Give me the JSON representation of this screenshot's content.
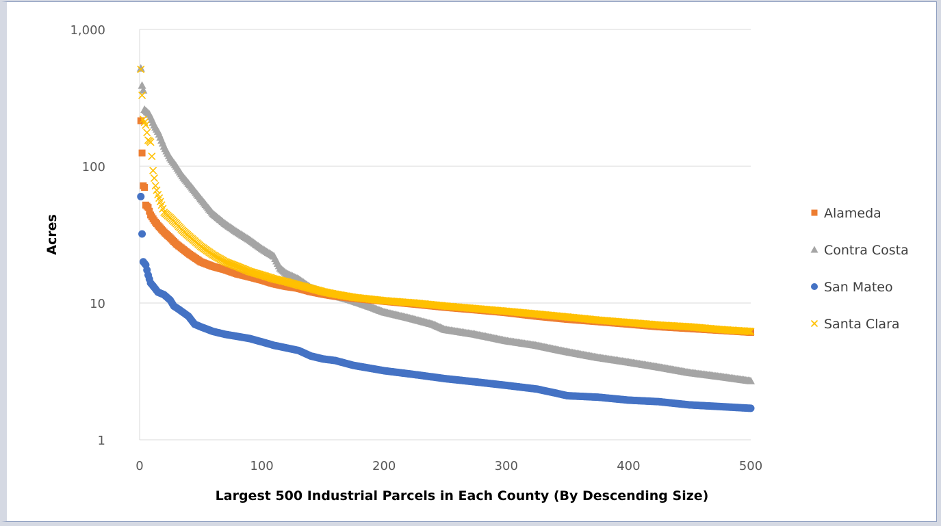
{
  "colors": {
    "alameda": "#ed7d31",
    "contra_costa": "#a5a5a5",
    "san_mateo": "#4472c4",
    "santa_clara": "#ffc000",
    "gridline": "#d9d9d9",
    "axis_text": "#595959"
  },
  "chart_data": {
    "type": "scatter",
    "title": "",
    "xlabel": "Largest 500 Industrial Parcels in Each County (By Descending Size)",
    "ylabel": "Acres",
    "yscale": "log",
    "xlim": [
      0,
      500
    ],
    "ylim": [
      1,
      1000
    ],
    "x_ticks": [
      0,
      100,
      200,
      300,
      400,
      500
    ],
    "x_tick_labels": [
      "0",
      "100",
      "200",
      "300",
      "400",
      "500"
    ],
    "y_ticks": [
      1,
      10,
      100,
      1000
    ],
    "y_tick_labels": [
      "1",
      "10",
      "100",
      "1,000"
    ],
    "grid": "horizontal",
    "legend_position": "right",
    "series": [
      {
        "name": "Alameda",
        "marker": "square",
        "color": "#ed7d31",
        "points": [
          [
            1,
            215
          ],
          [
            2,
            125
          ],
          [
            3,
            72
          ],
          [
            4,
            70
          ],
          [
            5,
            52
          ],
          [
            7,
            50
          ],
          [
            9,
            44
          ],
          [
            12,
            40
          ],
          [
            15,
            37
          ],
          [
            20,
            33
          ],
          [
            25,
            30
          ],
          [
            30,
            27
          ],
          [
            40,
            23
          ],
          [
            50,
            20
          ],
          [
            60,
            18.5
          ],
          [
            70,
            17.5
          ],
          [
            80,
            16.3
          ],
          [
            90,
            15.5
          ],
          [
            100,
            14.7
          ],
          [
            110,
            13.8
          ],
          [
            120,
            13.2
          ],
          [
            130,
            12.8
          ],
          [
            140,
            12.1
          ],
          [
            150,
            11.6
          ],
          [
            160,
            11.2
          ],
          [
            175,
            10.8
          ],
          [
            200,
            10.3
          ],
          [
            225,
            9.8
          ],
          [
            250,
            9.3
          ],
          [
            275,
            8.9
          ],
          [
            300,
            8.5
          ],
          [
            325,
            8.0
          ],
          [
            350,
            7.6
          ],
          [
            375,
            7.3
          ],
          [
            400,
            7.0
          ],
          [
            425,
            6.7
          ],
          [
            450,
            6.5
          ],
          [
            475,
            6.3
          ],
          [
            500,
            6.1
          ]
        ]
      },
      {
        "name": "Contra Costa",
        "marker": "triangle",
        "color": "#a5a5a5",
        "points": [
          [
            1,
            520
          ],
          [
            2,
            390
          ],
          [
            3,
            360
          ],
          [
            4,
            260
          ],
          [
            6,
            250
          ],
          [
            8,
            240
          ],
          [
            12,
            200
          ],
          [
            15,
            180
          ],
          [
            20,
            140
          ],
          [
            25,
            115
          ],
          [
            30,
            100
          ],
          [
            35,
            85
          ],
          [
            40,
            75
          ],
          [
            45,
            66
          ],
          [
            50,
            58
          ],
          [
            60,
            45
          ],
          [
            70,
            38
          ],
          [
            80,
            33
          ],
          [
            90,
            29
          ],
          [
            100,
            25
          ],
          [
            110,
            22
          ],
          [
            115,
            18
          ],
          [
            120,
            16.5
          ],
          [
            130,
            15
          ],
          [
            140,
            13
          ],
          [
            150,
            12
          ],
          [
            160,
            11.3
          ],
          [
            170,
            10.7
          ],
          [
            180,
            10
          ],
          [
            190,
            9.3
          ],
          [
            200,
            8.6
          ],
          [
            220,
            7.8
          ],
          [
            240,
            7.0
          ],
          [
            250,
            6.4
          ],
          [
            275,
            5.9
          ],
          [
            300,
            5.3
          ],
          [
            325,
            4.9
          ],
          [
            350,
            4.4
          ],
          [
            375,
            4.0
          ],
          [
            400,
            3.7
          ],
          [
            425,
            3.4
          ],
          [
            450,
            3.1
          ],
          [
            475,
            2.9
          ],
          [
            500,
            2.7
          ]
        ]
      },
      {
        "name": "San Mateo",
        "marker": "circle",
        "color": "#4472c4",
        "points": [
          [
            1,
            60
          ],
          [
            2,
            32
          ],
          [
            3,
            20
          ],
          [
            5,
            19
          ],
          [
            7,
            16
          ],
          [
            9,
            14
          ],
          [
            12,
            13
          ],
          [
            15,
            12
          ],
          [
            20,
            11.5
          ],
          [
            25,
            10.5
          ],
          [
            28,
            9.5
          ],
          [
            32,
            9
          ],
          [
            40,
            8
          ],
          [
            45,
            7
          ],
          [
            50,
            6.7
          ],
          [
            60,
            6.2
          ],
          [
            70,
            5.9
          ],
          [
            80,
            5.7
          ],
          [
            90,
            5.5
          ],
          [
            100,
            5.2
          ],
          [
            110,
            4.9
          ],
          [
            120,
            4.7
          ],
          [
            130,
            4.5
          ],
          [
            140,
            4.1
          ],
          [
            150,
            3.9
          ],
          [
            160,
            3.8
          ],
          [
            175,
            3.5
          ],
          [
            200,
            3.2
          ],
          [
            225,
            3.0
          ],
          [
            250,
            2.8
          ],
          [
            275,
            2.65
          ],
          [
            300,
            2.5
          ],
          [
            325,
            2.35
          ],
          [
            340,
            2.2
          ],
          [
            350,
            2.1
          ],
          [
            375,
            2.05
          ],
          [
            400,
            1.95
          ],
          [
            425,
            1.9
          ],
          [
            450,
            1.8
          ],
          [
            475,
            1.75
          ],
          [
            500,
            1.7
          ]
        ]
      },
      {
        "name": "Santa Clara",
        "marker": "x",
        "color": "#ffc000",
        "points": [
          [
            1,
            510
          ],
          [
            2,
            330
          ],
          [
            3,
            220
          ],
          [
            5,
            200
          ],
          [
            7,
            155
          ],
          [
            9,
            150
          ],
          [
            11,
            93
          ],
          [
            13,
            72
          ],
          [
            15,
            62
          ],
          [
            18,
            52
          ],
          [
            20,
            46
          ],
          [
            25,
            42
          ],
          [
            30,
            38
          ],
          [
            35,
            34
          ],
          [
            40,
            31
          ],
          [
            50,
            26
          ],
          [
            60,
            22.5
          ],
          [
            70,
            20
          ],
          [
            80,
            18.5
          ],
          [
            90,
            17
          ],
          [
            100,
            16
          ],
          [
            110,
            15
          ],
          [
            120,
            14.3
          ],
          [
            130,
            13.5
          ],
          [
            140,
            12.8
          ],
          [
            150,
            12.1
          ],
          [
            160,
            11.6
          ],
          [
            175,
            11
          ],
          [
            200,
            10.4
          ],
          [
            225,
            10
          ],
          [
            250,
            9.5
          ],
          [
            275,
            9.1
          ],
          [
            300,
            8.7
          ],
          [
            325,
            8.3
          ],
          [
            350,
            7.9
          ],
          [
            375,
            7.5
          ],
          [
            400,
            7.2
          ],
          [
            425,
            6.9
          ],
          [
            450,
            6.7
          ],
          [
            475,
            6.4
          ],
          [
            500,
            6.2
          ]
        ]
      }
    ]
  }
}
